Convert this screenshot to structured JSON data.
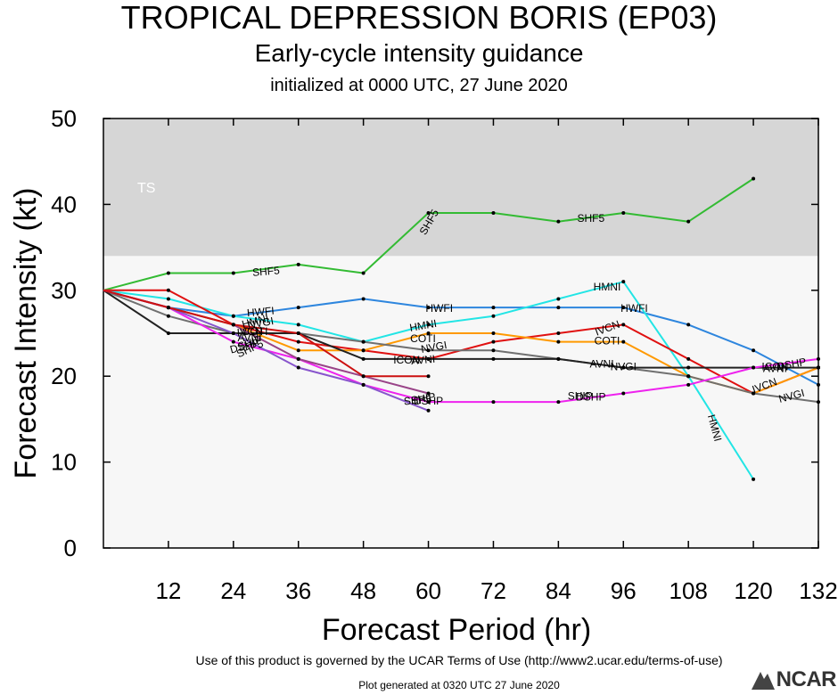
{
  "header": {
    "title": "TROPICAL DEPRESSION BORIS (EP03)",
    "subtitle": "Early-cycle intensity guidance",
    "init": "initialized at 0000 UTC, 27 June 2020"
  },
  "footer": {
    "terms": "Use of this product is governed by the UCAR Terms of Use (http://www2.ucar.edu/terms-of-use)",
    "generated": "Plot generated at 0320 UTC   27 June 2020",
    "logo": "NCAR"
  },
  "chart_data": {
    "type": "line",
    "xlabel": "Forecast Period (hr)",
    "ylabel": "Forecast Intensity (kt)",
    "xlim": [
      0,
      132
    ],
    "ylim": [
      0,
      50
    ],
    "xticks": [
      12,
      24,
      36,
      48,
      60,
      72,
      84,
      96,
      108,
      120,
      132
    ],
    "yticks": [
      0,
      10,
      20,
      30,
      40,
      50
    ],
    "bands": [
      {
        "label": "TS",
        "from": 34,
        "to": 50,
        "color": "#d6d6d6"
      }
    ],
    "plot_bg": "#f7f7f7",
    "series": [
      {
        "name": "SHF5",
        "color": "#33bb33",
        "points": [
          [
            0,
            30
          ],
          [
            12,
            32
          ],
          [
            24,
            32
          ],
          [
            36,
            33
          ],
          [
            48,
            32
          ],
          [
            60,
            39
          ],
          [
            72,
            39
          ],
          [
            84,
            38
          ],
          [
            96,
            39
          ],
          [
            108,
            38
          ],
          [
            120,
            43
          ]
        ],
        "labels": [
          [
            30,
            32.3,
            -5
          ],
          [
            60,
            38,
            -60
          ],
          [
            90,
            38.5,
            0
          ]
        ]
      },
      {
        "name": "HWFI",
        "color": "#2e86de",
        "points": [
          [
            0,
            30
          ],
          [
            12,
            28
          ],
          [
            24,
            27
          ],
          [
            36,
            28
          ],
          [
            48,
            29
          ],
          [
            60,
            28
          ],
          [
            72,
            28
          ],
          [
            84,
            28
          ],
          [
            96,
            28
          ],
          [
            108,
            26
          ],
          [
            120,
            23
          ],
          [
            132,
            19
          ]
        ],
        "labels": [
          [
            29,
            27.6,
            -5
          ],
          [
            62,
            28,
            0
          ],
          [
            98,
            28,
            0
          ]
        ]
      },
      {
        "name": "HMNI",
        "color": "#22e5e5",
        "points": [
          [
            0,
            30
          ],
          [
            12,
            29
          ],
          [
            24,
            27
          ],
          [
            36,
            26
          ],
          [
            48,
            24
          ],
          [
            60,
            26
          ],
          [
            72,
            27
          ],
          [
            84,
            29
          ],
          [
            96,
            31
          ],
          [
            108,
            20
          ],
          [
            120,
            8
          ]
        ],
        "labels": [
          [
            28,
            26.5,
            -15
          ],
          [
            59,
            26,
            -10
          ],
          [
            93,
            30.5,
            0
          ],
          [
            113,
            14,
            75
          ]
        ]
      },
      {
        "name": "IVCN",
        "color": "#e01010",
        "points": [
          [
            0,
            30
          ],
          [
            12,
            30
          ],
          [
            24,
            26
          ],
          [
            36,
            24
          ],
          [
            48,
            23
          ],
          [
            60,
            22
          ],
          [
            72,
            24
          ],
          [
            84,
            25
          ],
          [
            96,
            26
          ],
          [
            108,
            22
          ],
          [
            120,
            18
          ],
          [
            132,
            21
          ]
        ],
        "labels": [
          [
            27,
            25.3,
            -5
          ],
          [
            93,
            25.7,
            -20
          ],
          [
            122,
            19,
            -20
          ]
        ]
      },
      {
        "name": "COTI",
        "color": "#ff9900",
        "points": [
          [
            0,
            30
          ],
          [
            12,
            28
          ],
          [
            24,
            26
          ],
          [
            36,
            23
          ],
          [
            48,
            23
          ],
          [
            60,
            25
          ],
          [
            72,
            25
          ],
          [
            84,
            24
          ],
          [
            96,
            24
          ],
          [
            108,
            20
          ],
          [
            120,
            18
          ],
          [
            132,
            21
          ]
        ],
        "labels": [
          [
            28,
            25.3,
            0
          ],
          [
            59,
            24.5,
            0
          ],
          [
            93,
            24.2,
            0
          ]
        ]
      },
      {
        "name": "NVGI",
        "color": "#707070",
        "points": [
          [
            0,
            30
          ],
          [
            12,
            27
          ],
          [
            24,
            25
          ],
          [
            36,
            25
          ],
          [
            48,
            24
          ],
          [
            60,
            23
          ],
          [
            72,
            23
          ],
          [
            84,
            22
          ],
          [
            96,
            21
          ],
          [
            108,
            20
          ],
          [
            120,
            18
          ],
          [
            132,
            17
          ]
        ],
        "labels": [
          [
            29,
            26.3,
            -10
          ],
          [
            61,
            23.5,
            -10
          ],
          [
            96,
            21.2,
            0
          ],
          [
            127,
            17.8,
            -15
          ]
        ]
      },
      {
        "name": "AVNI",
        "color": "#222222",
        "points": [
          [
            0,
            30
          ],
          [
            12,
            25
          ],
          [
            24,
            25
          ],
          [
            36,
            25
          ],
          [
            48,
            22
          ],
          [
            60,
            22
          ],
          [
            72,
            22
          ],
          [
            84,
            22
          ],
          [
            96,
            21
          ],
          [
            108,
            21
          ],
          [
            120,
            21
          ],
          [
            132,
            21
          ]
        ],
        "labels": [
          [
            27,
            24.6,
            0
          ],
          [
            59,
            22,
            -5
          ],
          [
            92,
            21.5,
            0
          ],
          [
            124,
            21,
            0
          ]
        ]
      },
      {
        "name": "DSHP",
        "color": "#ee22ee",
        "points": [
          [
            0,
            30
          ],
          [
            12,
            28
          ],
          [
            24,
            24
          ],
          [
            36,
            22
          ],
          [
            48,
            19
          ],
          [
            60,
            17
          ],
          [
            72,
            17
          ],
          [
            84,
            17
          ],
          [
            96,
            18
          ],
          [
            108,
            19
          ],
          [
            120,
            21
          ],
          [
            132,
            22
          ]
        ],
        "labels": [
          [
            26,
            23.6,
            -15
          ],
          [
            60,
            17.2,
            0
          ],
          [
            90,
            17.7,
            0
          ],
          [
            127,
            21.5,
            -10
          ]
        ]
      },
      {
        "name": "SHIP",
        "color": "#8855cc",
        "points": [
          [
            0,
            30
          ],
          [
            12,
            28
          ],
          [
            24,
            25
          ],
          [
            36,
            21
          ],
          [
            48,
            19
          ],
          [
            60,
            16
          ]
        ],
        "labels": [
          [
            27,
            24,
            -20
          ],
          [
            59,
            17.5,
            -10
          ],
          [
            88,
            17.8,
            0
          ]
        ]
      },
      {
        "name": "SHP5",
        "color": "#994488",
        "points": [
          [
            0,
            30
          ],
          [
            12,
            28
          ],
          [
            24,
            26
          ],
          [
            36,
            22
          ],
          [
            48,
            20
          ],
          [
            60,
            18
          ]
        ],
        "labels": [
          [
            27,
            23.3,
            -25
          ],
          [
            58,
            17.3,
            -5
          ]
        ]
      },
      {
        "name": "ICON",
        "color": "#cc1111",
        "points": [
          [
            0,
            30
          ],
          [
            12,
            28
          ],
          [
            24,
            26
          ],
          [
            36,
            25
          ],
          [
            48,
            20
          ],
          [
            60,
            20
          ]
        ],
        "labels": [
          [
            56,
            22,
            0
          ],
          [
            124,
            21.2,
            0
          ]
        ]
      }
    ]
  }
}
